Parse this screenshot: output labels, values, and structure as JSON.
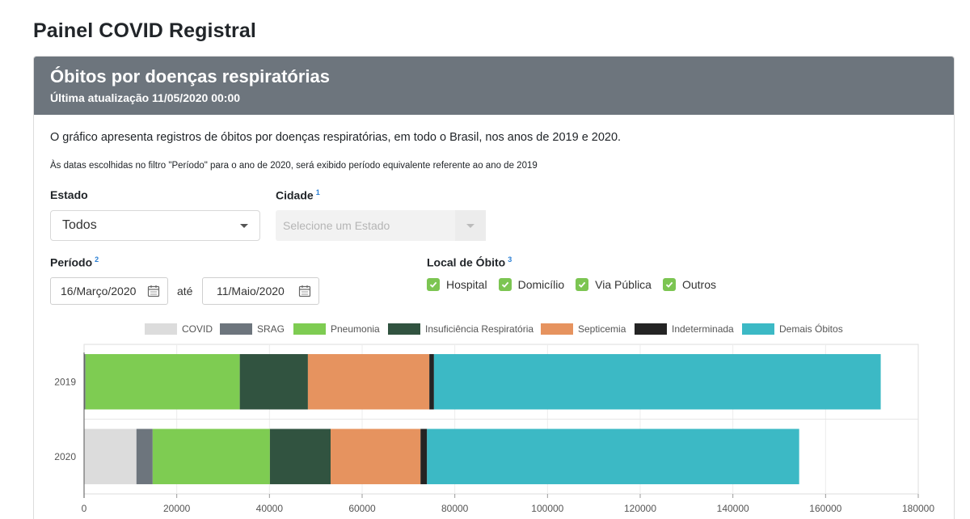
{
  "page": {
    "title": "Painel COVID Registral"
  },
  "card": {
    "title": "Óbitos por doenças respiratórias",
    "subtitle": "Última atualização 11/05/2020 00:00",
    "description": "O gráfico apresenta registros de óbitos por doenças respiratórias, em todo o Brasil, nos anos de 2019 e 2020.",
    "note": "Às datas escolhidas no filtro \"Período\" para o ano de 2020, será exibido período equivalente referente ao ano de 2019"
  },
  "filters": {
    "estado": {
      "label": "Estado",
      "value": "Todos"
    },
    "cidade": {
      "label": "Cidade",
      "sup": "1",
      "placeholder": "Selecione um Estado"
    },
    "periodo": {
      "label": "Período",
      "sup": "2",
      "start": "16/Março/2020",
      "between": "até",
      "end": "11/Maio/2020"
    },
    "local": {
      "label": "Local de Óbito",
      "sup": "3",
      "options": [
        "Hospital",
        "Domicílio",
        "Via Pública",
        "Outros"
      ]
    }
  },
  "colors": {
    "COVID": "#dcdcdc",
    "SRAG": "#6d757d",
    "Pneumonia": "#7ecc52",
    "Insuficiência Respiratória": "#315340",
    "Septicemia": "#e6935f",
    "Indeterminada": "#242424",
    "Demais Óbitos": "#3cb9c5",
    "check": "#7cc552",
    "header": "#6d757d"
  },
  "chart_data": {
    "type": "bar",
    "orientation": "horizontal",
    "stacked": true,
    "categories": [
      "2019",
      "2020"
    ],
    "series": [
      {
        "name": "COVID",
        "values": [
          0,
          11300
        ]
      },
      {
        "name": "SRAG",
        "values": [
          300,
          3500
        ]
      },
      {
        "name": "Pneumonia",
        "values": [
          33300,
          25300
        ]
      },
      {
        "name": "Insuficiência Respiratória",
        "values": [
          14700,
          13100
        ]
      },
      {
        "name": "Septicemia",
        "values": [
          26200,
          19400
        ]
      },
      {
        "name": "Indeterminada",
        "values": [
          1000,
          1400
        ]
      },
      {
        "name": "Demais Óbitos",
        "values": [
          96400,
          80300
        ]
      }
    ],
    "xlim": [
      0,
      180000
    ],
    "xticks": [
      "0",
      "20000",
      "40000",
      "60000",
      "80000",
      "100000",
      "120000",
      "140000",
      "160000",
      "180000"
    ],
    "grid": true,
    "legend": "top"
  }
}
